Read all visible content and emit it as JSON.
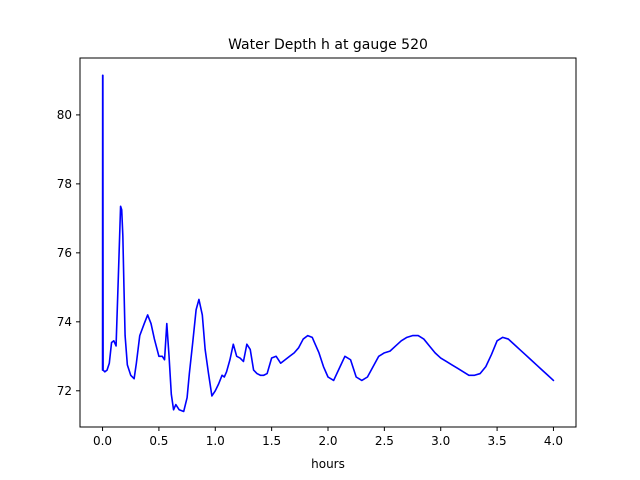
{
  "chart_data": {
    "type": "line",
    "title": "Water Depth h at gauge 520",
    "xlabel": "hours",
    "ylabel": "",
    "xlim": [
      -0.2,
      4.2
    ],
    "ylim": [
      70.95,
      81.65
    ],
    "xticks": [
      0.0,
      0.5,
      1.0,
      1.5,
      2.0,
      2.5,
      3.0,
      3.5,
      4.0
    ],
    "xtick_labels": [
      "0.0",
      "0.5",
      "1.0",
      "1.5",
      "2.0",
      "2.5",
      "3.0",
      "3.5",
      "4.0"
    ],
    "yticks": [
      72,
      74,
      76,
      78,
      80
    ],
    "ytick_labels": [
      "72",
      "74",
      "76",
      "78",
      "80"
    ],
    "grid": false,
    "series": [
      {
        "color": "#0000ff",
        "x": [
          0.0,
          0.001,
          0.003,
          0.005,
          0.02,
          0.04,
          0.06,
          0.08,
          0.1,
          0.12,
          0.14,
          0.16,
          0.17,
          0.18,
          0.19,
          0.2,
          0.22,
          0.25,
          0.28,
          0.3,
          0.33,
          0.37,
          0.4,
          0.43,
          0.46,
          0.5,
          0.53,
          0.55,
          0.57,
          0.59,
          0.61,
          0.63,
          0.65,
          0.68,
          0.72,
          0.75,
          0.77,
          0.8,
          0.83,
          0.855,
          0.885,
          0.91,
          0.94,
          0.97,
          1.0,
          1.03,
          1.06,
          1.08,
          1.1,
          1.13,
          1.16,
          1.19,
          1.22,
          1.25,
          1.28,
          1.31,
          1.34,
          1.37,
          1.4,
          1.43,
          1.46,
          1.5,
          1.54,
          1.58,
          1.62,
          1.66,
          1.7,
          1.74,
          1.78,
          1.82,
          1.86,
          1.88,
          1.92,
          1.96,
          2.0,
          2.05,
          2.1,
          2.15,
          2.2,
          2.25,
          2.3,
          2.35,
          2.4,
          2.45,
          2.5,
          2.55,
          2.6,
          2.65,
          2.7,
          2.75,
          2.8,
          2.85,
          2.9,
          2.95,
          3.0,
          3.05,
          3.1,
          3.15,
          3.2,
          3.25,
          3.3,
          3.35,
          3.4,
          3.45,
          3.5,
          3.55,
          3.6,
          3.65,
          3.7,
          3.75,
          3.8,
          3.85,
          3.9,
          3.95,
          4.0
        ],
        "y": [
          72.6,
          81.15,
          81.15,
          72.6,
          72.55,
          72.6,
          72.8,
          73.4,
          73.45,
          73.3,
          75.3,
          77.35,
          77.25,
          76.5,
          75.0,
          73.6,
          72.75,
          72.45,
          72.35,
          72.8,
          73.6,
          73.95,
          74.2,
          73.95,
          73.5,
          73.0,
          73.0,
          72.9,
          73.95,
          73.0,
          71.9,
          71.45,
          71.6,
          71.45,
          71.4,
          71.8,
          72.5,
          73.4,
          74.35,
          74.65,
          74.2,
          73.2,
          72.5,
          71.85,
          72.0,
          72.2,
          72.45,
          72.4,
          72.55,
          72.9,
          73.35,
          73.0,
          72.95,
          72.85,
          73.35,
          73.2,
          72.6,
          72.5,
          72.45,
          72.45,
          72.5,
          72.95,
          73.0,
          72.8,
          72.9,
          73.0,
          73.1,
          73.25,
          73.5,
          73.6,
          73.55,
          73.4,
          73.1,
          72.7,
          72.4,
          72.3,
          72.65,
          73.0,
          72.9,
          72.4,
          72.3,
          72.4,
          72.7,
          73.0,
          73.1,
          73.15,
          73.3,
          73.45,
          73.55,
          73.6,
          73.6,
          73.5,
          73.3,
          73.1,
          72.95,
          72.85,
          72.75,
          72.65,
          72.55,
          72.45,
          72.45,
          72.5,
          72.7,
          73.05,
          73.45,
          73.55,
          73.5,
          73.35,
          73.2,
          73.05,
          72.9,
          72.75,
          72.6,
          72.45,
          72.3
        ]
      }
    ]
  }
}
